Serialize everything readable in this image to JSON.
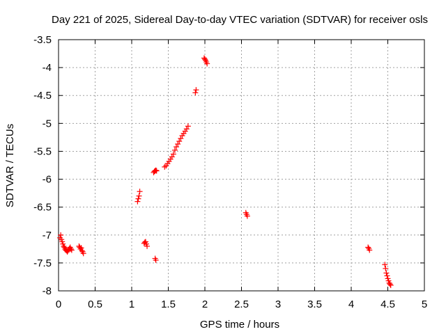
{
  "chart_data": {
    "type": "scatter",
    "title": "Day 221 of 2025, Sidereal Day-to-day VTEC variation (SDTVAR) for receiver osls",
    "xlabel": "GPS time / hours",
    "ylabel": "SDTVAR / TECUs",
    "xlim": [
      0,
      5
    ],
    "ylim": [
      -8,
      -3.5
    ],
    "xticks": [
      0,
      0.5,
      1,
      1.5,
      2,
      2.5,
      3,
      3.5,
      4,
      4.5,
      5
    ],
    "xtick_labels": [
      "0",
      "0.5",
      "1",
      "1.5",
      "2",
      "2.5",
      "3",
      "3.5",
      "4",
      "4.5",
      "5"
    ],
    "yticks": [
      -3.5,
      -4,
      -4.5,
      -5,
      -5.5,
      -6,
      -6.5,
      -7,
      -7.5,
      -8
    ],
    "ytick_labels": [
      "-3.5",
      "-4",
      "-4.5",
      "-5",
      "-5.5",
      "-6",
      "-6.5",
      "-7",
      "-7.5",
      "-8"
    ],
    "grid": true,
    "marker": "+",
    "color": "#ff0000",
    "series": [
      {
        "name": "SDTVAR",
        "x": [
          0.02,
          0.03,
          0.04,
          0.05,
          0.06,
          0.07,
          0.08,
          0.09,
          0.1,
          0.11,
          0.12,
          0.13,
          0.14,
          0.15,
          0.16,
          0.17,
          0.18,
          0.28,
          0.29,
          0.3,
          0.31,
          0.32,
          0.33,
          0.34,
          1.08,
          1.09,
          1.1,
          1.11,
          1.17,
          1.18,
          1.19,
          1.2,
          1.21,
          1.3,
          1.31,
          1.32,
          1.33,
          1.34,
          1.32,
          1.33,
          1.45,
          1.47,
          1.49,
          1.51,
          1.53,
          1.55,
          1.57,
          1.59,
          1.61,
          1.63,
          1.65,
          1.67,
          1.69,
          1.71,
          1.73,
          1.75,
          1.77,
          1.87,
          1.88,
          1.99,
          2.0,
          2.01,
          2.02,
          2.03,
          2.56,
          2.57,
          2.58,
          4.23,
          4.24,
          4.25,
          4.46,
          4.47,
          4.48,
          4.49,
          4.5,
          4.51,
          4.52,
          4.53,
          4.54
        ],
        "y": [
          -7.05,
          -7.0,
          -7.08,
          -7.12,
          -7.16,
          -7.2,
          -7.22,
          -7.25,
          -7.27,
          -7.28,
          -7.3,
          -7.28,
          -7.26,
          -7.24,
          -7.22,
          -7.25,
          -7.27,
          -7.2,
          -7.22,
          -7.25,
          -7.23,
          -7.28,
          -7.3,
          -7.33,
          -6.4,
          -6.35,
          -6.3,
          -6.22,
          -7.15,
          -7.13,
          -7.12,
          -7.16,
          -7.2,
          -5.88,
          -5.86,
          -5.85,
          -5.84,
          -5.85,
          -7.42,
          -7.45,
          -5.78,
          -5.76,
          -5.72,
          -5.68,
          -5.64,
          -5.6,
          -5.55,
          -5.48,
          -5.42,
          -5.37,
          -5.32,
          -5.27,
          -5.22,
          -5.18,
          -5.14,
          -5.1,
          -5.05,
          -4.45,
          -4.4,
          -3.83,
          -3.85,
          -3.87,
          -3.9,
          -3.93,
          -6.6,
          -6.63,
          -6.66,
          -7.22,
          -7.24,
          -7.27,
          -7.53,
          -7.6,
          -7.68,
          -7.73,
          -7.78,
          -7.82,
          -7.86,
          -7.88,
          -7.9
        ]
      }
    ]
  }
}
